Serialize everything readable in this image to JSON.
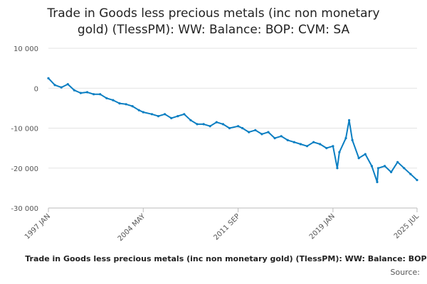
{
  "chart_data": {
    "type": "line",
    "title_lines": [
      "Trade in Goods less precious metals (inc non monetary",
      "gold) (TlessPM): WW: Balance: BOP: CVM: SA"
    ],
    "xlabel": "",
    "ylabel": "",
    "ylim": [
      -30000,
      10000
    ],
    "yticks": [
      10000,
      0,
      -10000,
      -20000,
      -30000
    ],
    "ytick_labels": [
      "10 000",
      "0",
      "-10 000",
      "-20 000",
      "-30 000"
    ],
    "xlim": [
      "1997 JAN",
      "2025 JUL"
    ],
    "xtick_labels": [
      "1997 JAN",
      "2004 MAY",
      "2011 SEP",
      "2019 JAN",
      "2025 JUL"
    ],
    "grid": true,
    "line_color": "#0a7ec2",
    "series": [
      {
        "name": "Trade in Goods less precious metals (inc non monetary gold) (TlessPM): WW: Balance: BOP: CVM: SA",
        "points": [
          [
            "1997 JAN",
            2500
          ],
          [
            "1997 JUL",
            800
          ],
          [
            "1998 JAN",
            200
          ],
          [
            "1998 JUL",
            1000
          ],
          [
            "1999 JAN",
            -500
          ],
          [
            "1999 JUL",
            -1200
          ],
          [
            "2000 JAN",
            -1000
          ],
          [
            "2000 JUL",
            -1500
          ],
          [
            "2001 JAN",
            -1500
          ],
          [
            "2001 JUL",
            -2500
          ],
          [
            "2002 JAN",
            -3000
          ],
          [
            "2002 JUL",
            -3800
          ],
          [
            "2003 JAN",
            -4000
          ],
          [
            "2003 JUL",
            -4500
          ],
          [
            "2004 JAN",
            -5500
          ],
          [
            "2004 MAY",
            -6000
          ],
          [
            "2005 JAN",
            -6500
          ],
          [
            "2005 JUL",
            -7000
          ],
          [
            "2006 JAN",
            -6500
          ],
          [
            "2006 JUL",
            -7500
          ],
          [
            "2007 JAN",
            -7000
          ],
          [
            "2007 JUL",
            -6500
          ],
          [
            "2008 JAN",
            -8000
          ],
          [
            "2008 JUL",
            -9000
          ],
          [
            "2009 JAN",
            -9000
          ],
          [
            "2009 JUL",
            -9500
          ],
          [
            "2010 JAN",
            -8500
          ],
          [
            "2010 JUL",
            -9000
          ],
          [
            "2011 JAN",
            -10000
          ],
          [
            "2011 SEP",
            -9500
          ],
          [
            "2012 JAN",
            -10000
          ],
          [
            "2012 JUL",
            -11000
          ],
          [
            "2013 JAN",
            -10500
          ],
          [
            "2013 JUL",
            -11500
          ],
          [
            "2014 JAN",
            -11000
          ],
          [
            "2014 JUL",
            -12500
          ],
          [
            "2015 JAN",
            -12000
          ],
          [
            "2015 JUL",
            -13000
          ],
          [
            "2016 JAN",
            -13500
          ],
          [
            "2016 JUL",
            -14000
          ],
          [
            "2017 JAN",
            -14500
          ],
          [
            "2017 JUL",
            -13500
          ],
          [
            "2018 JAN",
            -14000
          ],
          [
            "2018 JUL",
            -15000
          ],
          [
            "2019 JAN",
            -14500
          ],
          [
            "2019 MAY",
            -20000
          ],
          [
            "2019 JUL",
            -16000
          ],
          [
            "2020 JAN",
            -12500
          ],
          [
            "2020 APR",
            -8000
          ],
          [
            "2020 JUL",
            -13000
          ],
          [
            "2021 JAN",
            -17500
          ],
          [
            "2021 JUL",
            -16500
          ],
          [
            "2022 JAN",
            -19500
          ],
          [
            "2022 JUN",
            -23500
          ],
          [
            "2022 JUL",
            -20000
          ],
          [
            "2023 JAN",
            -19500
          ],
          [
            "2023 JUL",
            -21000
          ],
          [
            "2024 JAN",
            -18500
          ],
          [
            "2024 JUL",
            -20000
          ],
          [
            "2025 JAN",
            -21500
          ],
          [
            "2025 JUL",
            -23000
          ]
        ]
      }
    ],
    "source_label": "Source:"
  }
}
